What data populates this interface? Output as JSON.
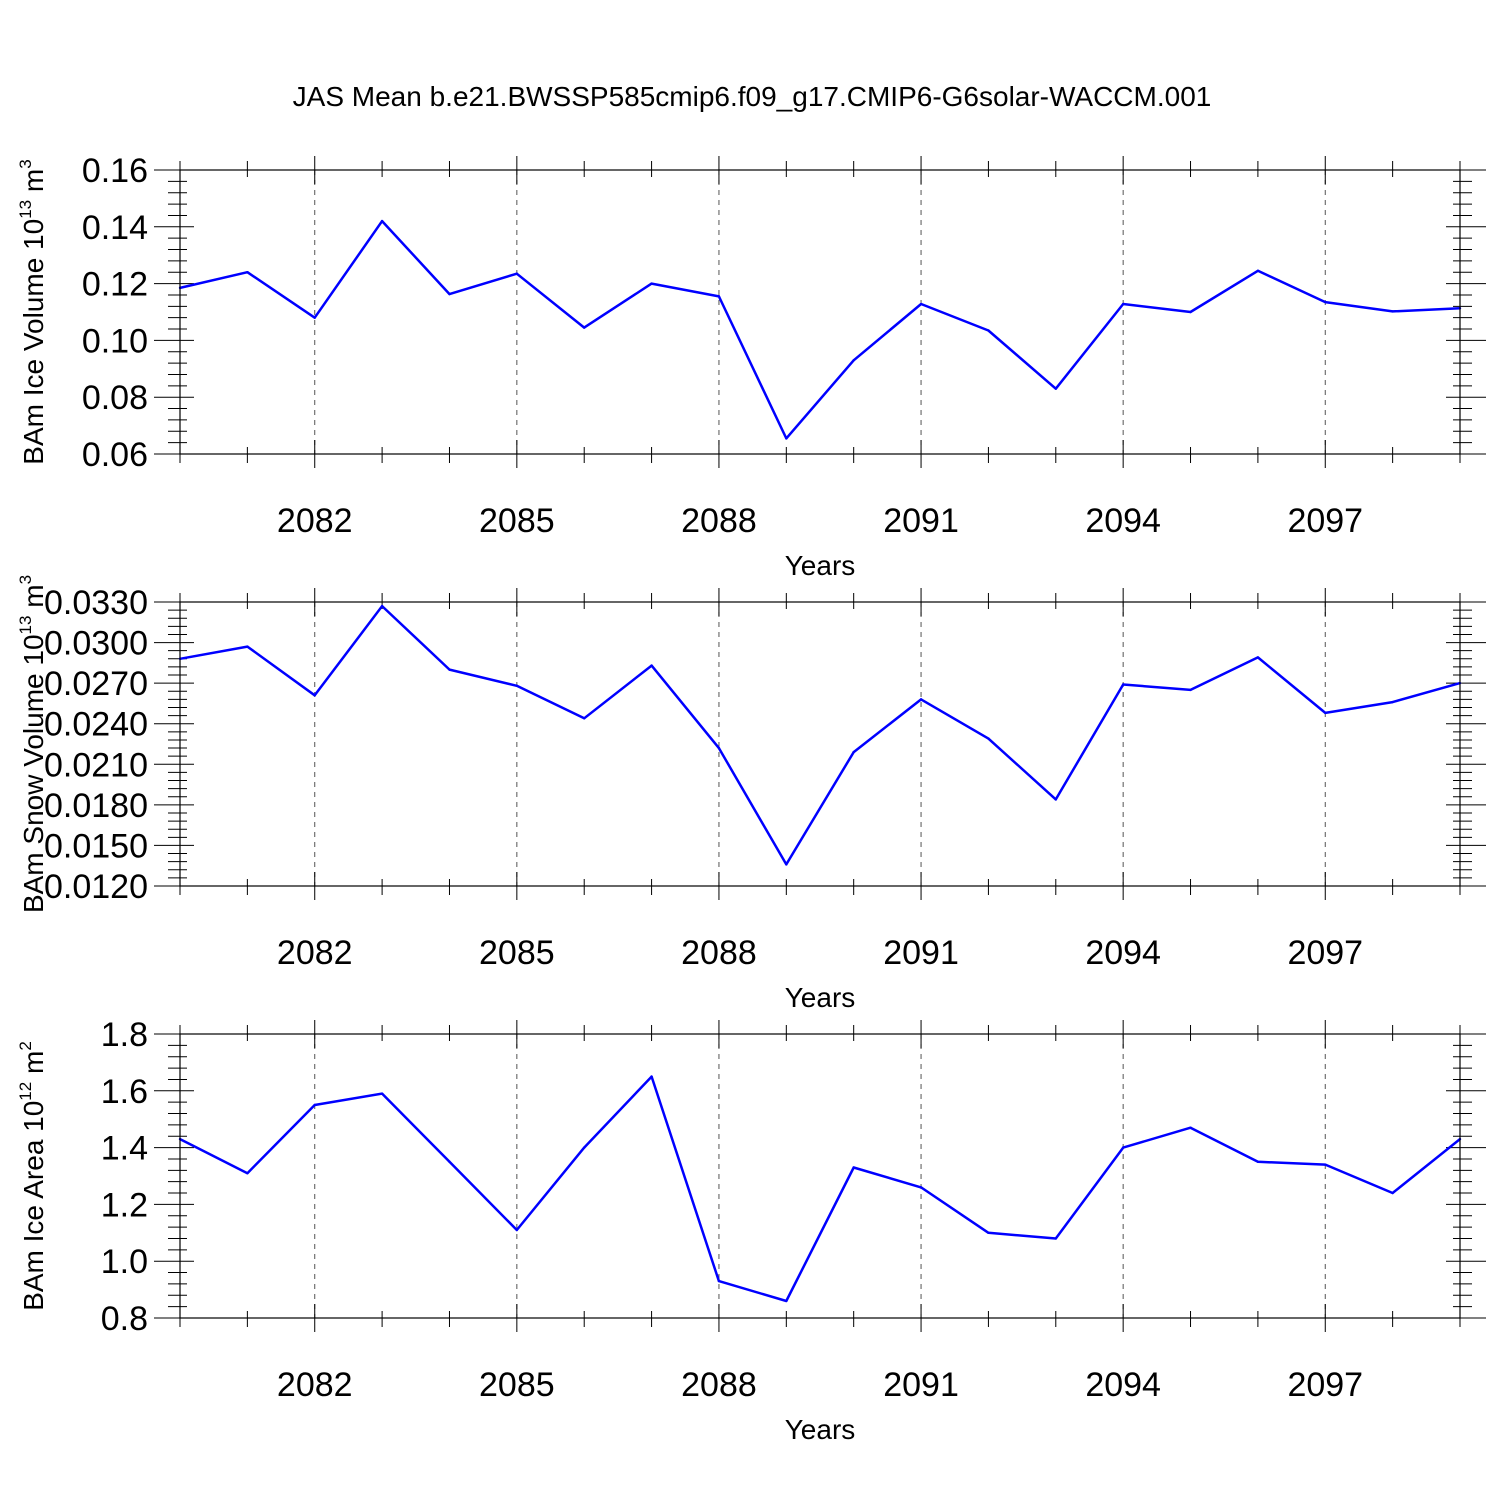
{
  "figure": {
    "title": "JAS Mean b.e21.BWSSP585cmip6.f09_g17.CMIP6-G6solar-WACCM.001",
    "line_color": "#0000ff",
    "grid_color": "#555555"
  },
  "chart_data": [
    {
      "type": "line",
      "title": "JAS Mean b.e21.BWSSP585cmip6.f09_g17.CMIP6-G6solar-WACCM.001",
      "xlabel": "Years",
      "ylabel": "BAm Ice Volume 10",
      "ylabel_exp": "13",
      "ylabel_unit": " m",
      "ylabel_unit_exp": "3",
      "xlim": [
        2080,
        2099
      ],
      "ylim": [
        0.06,
        0.16
      ],
      "yticks": [
        0.06,
        0.08,
        0.1,
        0.12,
        0.14,
        0.16
      ],
      "yticklabels": [
        "0.06",
        "0.08",
        "0.10",
        "0.12",
        "0.14",
        "0.16"
      ],
      "xticks": [
        2082,
        2085,
        2088,
        2091,
        2094,
        2097
      ],
      "xticklabels": [
        "2082",
        "2085",
        "2088",
        "2091",
        "2094",
        "2097"
      ],
      "x": [
        2080,
        2081,
        2082,
        2083,
        2084,
        2085,
        2086,
        2087,
        2088,
        2089,
        2090,
        2091,
        2092,
        2093,
        2094,
        2095,
        2096,
        2097,
        2098,
        2099
      ],
      "values": [
        0.1185,
        0.124,
        0.108,
        0.142,
        0.1163,
        0.1235,
        0.1045,
        0.12,
        0.1155,
        0.0655,
        0.093,
        0.1128,
        0.1035,
        0.083,
        0.1128,
        0.11,
        0.1245,
        0.1135,
        0.1102,
        0.1113
      ]
    },
    {
      "type": "line",
      "xlabel": "Years",
      "ylabel": "BAm Snow Volume 10",
      "ylabel_exp": "13",
      "ylabel_unit": " m",
      "ylabel_unit_exp": "3",
      "xlim": [
        2080,
        2099
      ],
      "ylim": [
        0.012,
        0.033
      ],
      "yticks": [
        0.012,
        0.015,
        0.018,
        0.021,
        0.024,
        0.027,
        0.03,
        0.033
      ],
      "yticklabels": [
        "0.0120",
        "0.0150",
        "0.0180",
        "0.0210",
        "0.0240",
        "0.0270",
        "0.0300",
        "0.0330"
      ],
      "xticks": [
        2082,
        2085,
        2088,
        2091,
        2094,
        2097
      ],
      "xticklabels": [
        "2082",
        "2085",
        "2088",
        "2091",
        "2094",
        "2097"
      ],
      "x": [
        2080,
        2081,
        2082,
        2083,
        2084,
        2085,
        2086,
        2087,
        2088,
        2089,
        2090,
        2091,
        2092,
        2093,
        2094,
        2095,
        2096,
        2097,
        2098,
        2099
      ],
      "values": [
        0.0288,
        0.0297,
        0.0261,
        0.0327,
        0.028,
        0.0268,
        0.0244,
        0.0283,
        0.0222,
        0.0136,
        0.0219,
        0.0258,
        0.0229,
        0.0184,
        0.0269,
        0.0265,
        0.0289,
        0.0248,
        0.0256,
        0.027
      ]
    },
    {
      "type": "line",
      "xlabel": "Years",
      "ylabel": "BAm Ice Area 10",
      "ylabel_exp": "12",
      "ylabel_unit": " m",
      "ylabel_unit_exp": "2",
      "xlim": [
        2080,
        2099
      ],
      "ylim": [
        0.8,
        1.8
      ],
      "yticks": [
        0.8,
        1.0,
        1.2,
        1.4,
        1.6,
        1.8
      ],
      "yticklabels": [
        "0.8",
        "1.0",
        "1.2",
        "1.4",
        "1.6",
        "1.8"
      ],
      "xticks": [
        2082,
        2085,
        2088,
        2091,
        2094,
        2097
      ],
      "xticklabels": [
        "2082",
        "2085",
        "2088",
        "2091",
        "2094",
        "2097"
      ],
      "x": [
        2080,
        2081,
        2082,
        2083,
        2084,
        2085,
        2086,
        2087,
        2088,
        2089,
        2090,
        2091,
        2092,
        2093,
        2094,
        2095,
        2096,
        2097,
        2098,
        2099
      ],
      "values": [
        1.43,
        1.31,
        1.55,
        1.59,
        1.35,
        1.11,
        1.4,
        1.65,
        0.93,
        0.86,
        1.33,
        1.26,
        1.1,
        1.08,
        1.4,
        1.47,
        1.35,
        1.34,
        1.24,
        1.43
      ]
    }
  ]
}
